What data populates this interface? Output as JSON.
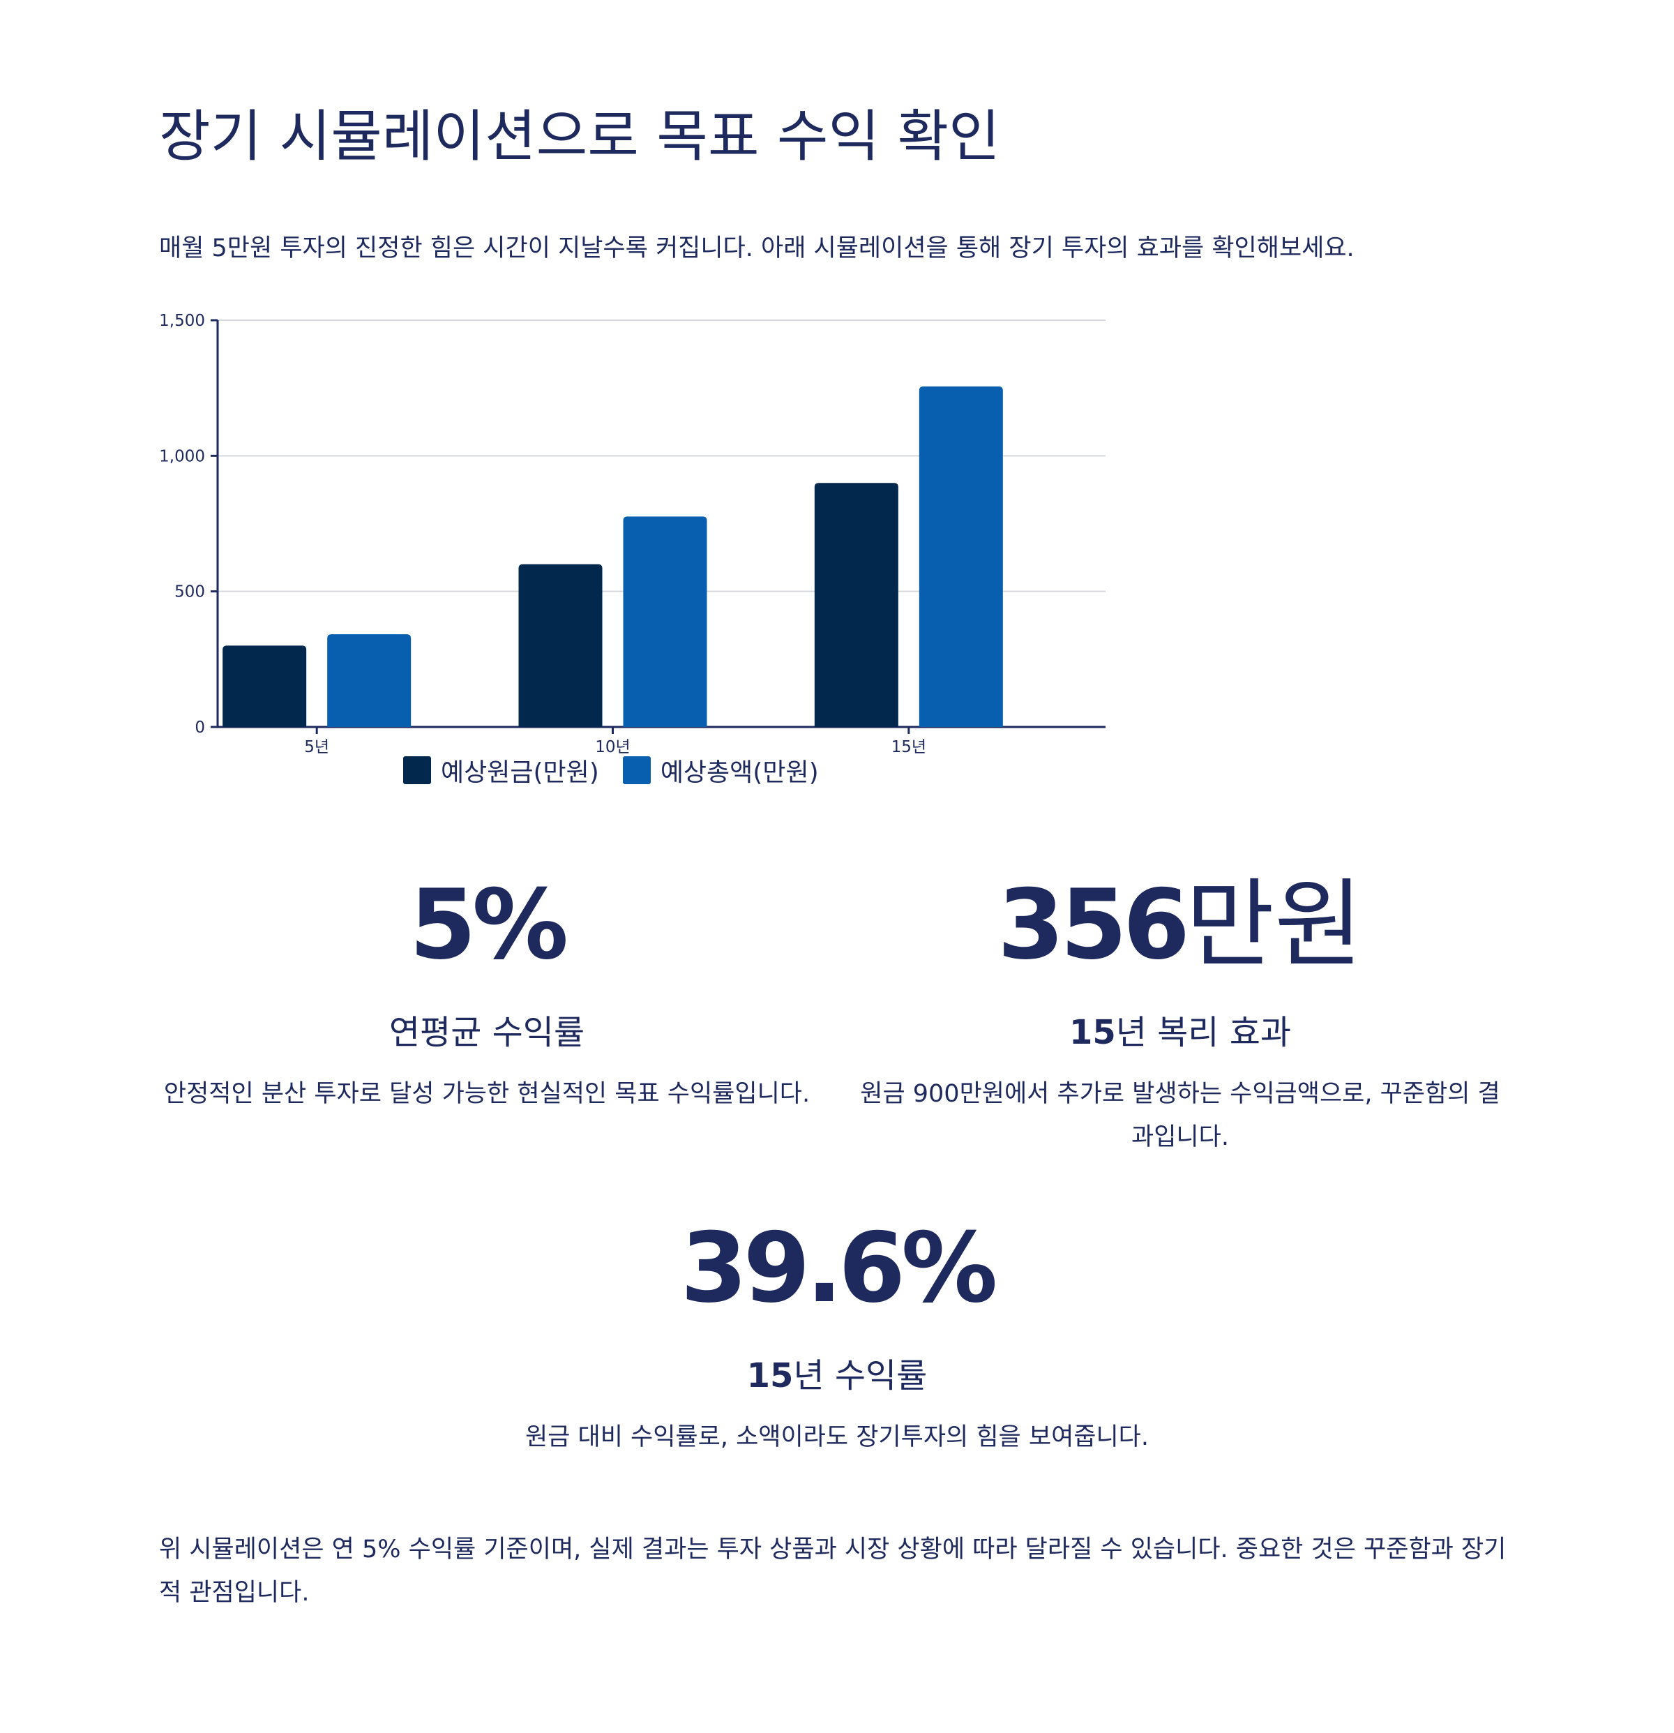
{
  "header": {
    "title": "장기 시뮬레이션으로 목표 수익 확인",
    "intro": "매월 5만원 투자의 진정한 힘은 시간이 지날수록 커집니다. 아래 시뮬레이션을 통해 장기 투자의 효과를 확인해보세요."
  },
  "colors": {
    "text": "#1e2a5e",
    "principal": "#03284e",
    "total": "#085fb0",
    "grid": "#d4d6dc",
    "axis": "#1e2a5e"
  },
  "chart_data": {
    "type": "bar",
    "categories": [
      "5년",
      "10년",
      "15년"
    ],
    "series": [
      {
        "name": "예상원금(만원)",
        "values": [
          300,
          600,
          900
        ]
      },
      {
        "name": "예상총액(만원)",
        "values": [
          342,
          776,
          1256
        ]
      }
    ],
    "ylim": [
      0,
      1500
    ],
    "yticks": [
      0,
      500,
      1000,
      1500
    ],
    "ytick_labels": [
      "0",
      "500",
      "1,000",
      "1,500"
    ],
    "grid": true,
    "legend": "bottom-center"
  },
  "stats": [
    {
      "value": "5%",
      "label": "연평균 수익률",
      "desc": "안정적인 분산 투자로 달성 가능한 현실적인 목표 수익률입니다."
    },
    {
      "value_num": "356",
      "value_unit": "만원",
      "label_num": "15",
      "label_rest": "년 복리 효과",
      "desc": "원금 900만원에서 추가로 발생하는 수익금액으로, 꾸준함의 결과입니다."
    },
    {
      "value": "39.6%",
      "label_num": "15",
      "label_rest": "년 수익률",
      "desc": "원금 대비 수익률로, 소액이라도 장기투자의 힘을 보여줍니다."
    }
  ],
  "footer": {
    "note": "위 시뮬레이션은 연 5% 수익률 기준이며, 실제 결과는 투자 상품과 시장 상황에 따라 달라질 수 있습니다. 중요한 것은 꾸준함과 장기적 관점입니다."
  }
}
